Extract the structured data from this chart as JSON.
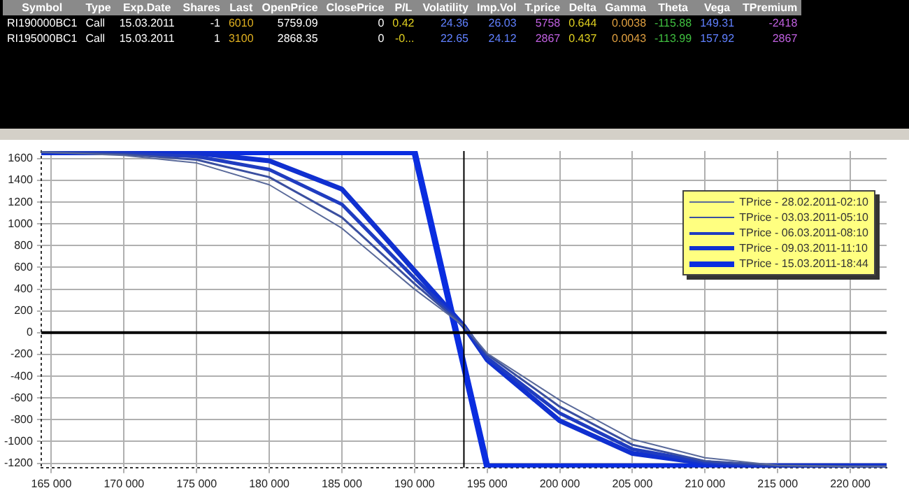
{
  "chart_data": [
    {
      "type": "other",
      "categories": [
        "Symbol",
        "Type",
        "Exp.Date",
        "Shares",
        "Last",
        "OpenPrice",
        "ClosePrice",
        "P/L",
        "Volatility",
        "Imp.Vol",
        "T.price",
        "Delta",
        "Gamma",
        "Theta",
        "Vega",
        "TPremium"
      ],
      "annotations": [
        "RI190000BC1",
        "Call",
        "15.03.2011",
        "-1",
        "6010",
        "5759.09",
        "0",
        "0.42",
        "24.36",
        "26.03",
        "5758",
        "0.644",
        "0.0038",
        "-115.88",
        "149.31",
        "-2418",
        "RI195000BC1",
        "Call",
        "15.03.2011",
        "1",
        "3100",
        "2868.35",
        "0",
        "-0...",
        "22.65",
        "24.12",
        "2867",
        "0.437",
        "0.0043",
        "-113.99",
        "157.92",
        "2867"
      ]
    },
    {
      "type": "line",
      "legend": "top right",
      "grid": true,
      "marker": "none",
      "line_style": "solid",
      "xlim": [
        164300,
        222500
      ],
      "xticks": [
        {
          "value": 165000,
          "label": "165 000"
        },
        {
          "value": 170000,
          "label": "170 000"
        },
        {
          "value": 175000,
          "label": "175 000"
        },
        {
          "value": 180000,
          "label": "180 000"
        },
        {
          "value": 185000,
          "label": "185 000"
        },
        {
          "value": 190000,
          "label": "190 000"
        },
        {
          "value": 195000,
          "label": "195 000"
        },
        {
          "value": 200000,
          "label": "200 000"
        },
        {
          "value": 205000,
          "label": "205 000"
        },
        {
          "value": 210000,
          "label": "210 000"
        },
        {
          "value": 215000,
          "label": "215 000"
        },
        {
          "value": 220000,
          "label": "220 000"
        }
      ],
      "ylim": [
        -1240,
        1670
      ],
      "yticks": [
        -1200,
        -1000,
        -800,
        -600,
        -400,
        -200,
        0,
        200,
        400,
        600,
        800,
        1000,
        1200,
        1400,
        1600
      ],
      "ref_lines": [
        {
          "axis": "y",
          "value": 0,
          "color": "#000000"
        },
        {
          "axis": "x",
          "value": 193400,
          "color": "#000000"
        }
      ],
      "x": [
        164300,
        170000,
        175000,
        180000,
        185000,
        190000,
        193400,
        195000,
        200000,
        205000,
        210000,
        215000,
        220000,
        222500
      ],
      "series": [
        {
          "name": "TPrice - 28.02.2011-02:10",
          "color": "#5a6a9a",
          "values": [
            1660,
            1630,
            1560,
            1360,
            960,
            400,
            60,
            -190,
            -620,
            -980,
            -1150,
            -1220,
            -1230,
            -1230
          ]
        },
        {
          "name": "TPrice - 03.03.2011-05:10",
          "color": "#3a4fa0",
          "values": [
            1660,
            1640,
            1590,
            1430,
            1060,
            450,
            60,
            -200,
            -680,
            -1030,
            -1180,
            -1220,
            -1230,
            -1230
          ]
        },
        {
          "name": "TPrice - 06.03.2011-08:10",
          "color": "#1f3cc0",
          "values": [
            1660,
            1650,
            1620,
            1500,
            1180,
            500,
            60,
            -230,
            -740,
            -1070,
            -1190,
            -1230,
            -1230,
            -1230
          ]
        },
        {
          "name": "TPrice - 09.03.2011-11:10",
          "color": "#1030d0",
          "values": [
            1660,
            1660,
            1650,
            1580,
            1320,
            570,
            60,
            -250,
            -810,
            -1110,
            -1200,
            -1230,
            -1230,
            -1230
          ]
        },
        {
          "name": "TPrice - 15.03.2011-18:44",
          "color": "#0a2de0",
          "x": [
            164300,
            190000,
            195000,
            222500
          ],
          "values": [
            1660,
            1660,
            -1230,
            -1230
          ]
        }
      ]
    }
  ]
}
